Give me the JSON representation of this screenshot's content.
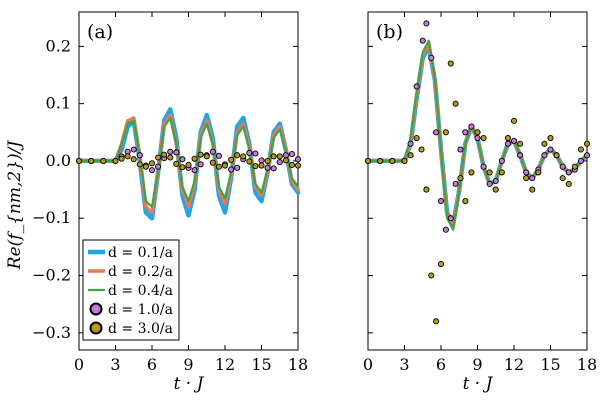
{
  "chart_data": {
    "type": "line",
    "xlabel": "t · J",
    "ylabel": "Re(f_{nm,2})/J",
    "xlim": [
      0,
      18
    ],
    "ylim": [
      -0.33,
      0.26
    ],
    "xticks": [
      0,
      3,
      6,
      9,
      12,
      15,
      18
    ],
    "yticks": [
      -0.3,
      -0.2,
      -0.1,
      0.0,
      0.1,
      0.2
    ],
    "ytick_labels": [
      "−0.3",
      "−0.2",
      "−0.1",
      "0.0",
      "0.1",
      "0.2"
    ],
    "legend_location": "bottom-left",
    "legend": [
      {
        "label": "d = 0.1/a",
        "color": "#1ea5e8",
        "style": "line"
      },
      {
        "label": "d = 0.2/a",
        "color": "#e8795a",
        "style": "line"
      },
      {
        "label": "d = 0.4/a",
        "color": "#3aa647",
        "style": "line"
      },
      {
        "label": "d = 1.0/a",
        "color": "#c878d8",
        "style": "marker"
      },
      {
        "label": "d = 3.0/a",
        "color": "#b89a1a",
        "style": "marker"
      }
    ],
    "panels": [
      {
        "label": "(a)",
        "series": [
          {
            "name": "d = 0.1/a",
            "x": [
              0,
              3,
              3.5,
              4,
              4.5,
              5,
              5.5,
              6,
              6.5,
              7,
              7.5,
              8,
              8.5,
              9,
              9.5,
              10,
              10.5,
              11,
              11.5,
              12,
              12.5,
              13,
              13.5,
              14,
              14.5,
              15,
              15.5,
              16,
              16.5,
              17,
              17.5,
              18
            ],
            "y": [
              0,
              0,
              0.02,
              0.06,
              0.07,
              0.0,
              -0.09,
              -0.1,
              -0.02,
              0.07,
              0.09,
              0.04,
              -0.06,
              -0.095,
              -0.05,
              0.05,
              0.08,
              0.04,
              -0.06,
              -0.09,
              -0.03,
              0.06,
              0.075,
              0.03,
              -0.055,
              -0.07,
              -0.02,
              0.05,
              0.065,
              0.02,
              -0.04,
              -0.055
            ]
          },
          {
            "name": "d = 0.2/a",
            "x": [
              0,
              3,
              3.5,
              4,
              4.5,
              5,
              5.5,
              6,
              6.5,
              7,
              7.5,
              8,
              8.5,
              9,
              9.5,
              10,
              10.5,
              11,
              11.5,
              12,
              12.5,
              13,
              13.5,
              14,
              14.5,
              15,
              15.5,
              16,
              16.5,
              17,
              17.5,
              18
            ],
            "y": [
              0,
              0,
              0.03,
              0.07,
              0.075,
              0.01,
              -0.08,
              -0.09,
              -0.02,
              0.065,
              0.08,
              0.03,
              -0.05,
              -0.08,
              -0.04,
              0.045,
              0.07,
              0.03,
              -0.05,
              -0.075,
              -0.025,
              0.05,
              0.065,
              0.025,
              -0.045,
              -0.06,
              -0.02,
              0.045,
              0.06,
              0.02,
              -0.035,
              -0.05
            ]
          },
          {
            "name": "d = 0.4/a",
            "x": [
              0,
              3,
              3.5,
              4,
              4.5,
              5,
              5.5,
              6,
              6.5,
              7,
              7.5,
              8,
              8.5,
              9,
              9.5,
              10,
              10.5,
              11,
              11.5,
              12,
              12.5,
              13,
              13.5,
              14,
              14.5,
              15,
              15.5,
              16,
              16.5,
              17,
              17.5,
              18
            ],
            "y": [
              0,
              0,
              0.03,
              0.065,
              0.07,
              0.01,
              -0.07,
              -0.08,
              -0.02,
              0.06,
              0.075,
              0.03,
              -0.045,
              -0.07,
              -0.035,
              0.04,
              0.065,
              0.03,
              -0.045,
              -0.065,
              -0.02,
              0.045,
              0.06,
              0.02,
              -0.04,
              -0.055,
              -0.015,
              0.04,
              0.055,
              0.015,
              -0.03,
              -0.045
            ]
          },
          {
            "name": "d = 1.0/a",
            "x": [
              0,
              1,
              2,
              3,
              3.5,
              4,
              4.5,
              5,
              5.5,
              6,
              6.5,
              7,
              7.5,
              8,
              8.5,
              9,
              9.5,
              10,
              10.5,
              11,
              11.5,
              12,
              12.5,
              13,
              13.5,
              14,
              14.5,
              15,
              15.5,
              16,
              16.5,
              17,
              17.5,
              18
            ],
            "y": [
              0,
              0,
              0,
              0,
              0.008,
              0.016,
              0.02,
              0.01,
              -0.008,
              -0.016,
              -0.01,
              0.005,
              0.016,
              0.015,
              0.003,
              -0.012,
              -0.016,
              -0.006,
              0.01,
              0.016,
              0.009,
              -0.006,
              -0.015,
              -0.012,
              0.003,
              0.014,
              0.013,
              0.001,
              -0.012,
              -0.013,
              -0.002,
              0.01,
              0.012,
              0.003
            ]
          },
          {
            "name": "d = 3.0/a",
            "x": [
              0,
              1,
              2,
              3,
              3.5,
              4,
              4.5,
              5,
              5.5,
              6,
              6.5,
              7,
              7.5,
              8,
              8.5,
              9,
              9.5,
              10,
              10.5,
              11,
              11.5,
              12,
              12.5,
              13,
              13.5,
              14,
              14.5,
              15,
              15.5,
              16,
              16.5,
              17,
              17.5,
              18
            ],
            "y": [
              0,
              0,
              0,
              0,
              0.004,
              0.008,
              0.003,
              -0.006,
              -0.01,
              -0.004,
              0.006,
              0.011,
              0.006,
              -0.005,
              -0.011,
              -0.007,
              0.004,
              0.011,
              0.008,
              -0.003,
              -0.01,
              -0.008,
              0.002,
              0.01,
              0.008,
              -0.001,
              -0.009,
              -0.008,
              0.0,
              0.008,
              0.008,
              0.001,
              -0.007,
              -0.008
            ]
          }
        ]
      },
      {
        "label": "(b)",
        "series": [
          {
            "name": "d = 0.1/a",
            "x": [
              0,
              3,
              3.5,
              4,
              4.5,
              5,
              5.5,
              6,
              6.5,
              7,
              7.5,
              8,
              8.5,
              9,
              9.5,
              10,
              10.5,
              11,
              11.5,
              12,
              12.5,
              13,
              13.5,
              14,
              14.5,
              15,
              15.5,
              16,
              16.5,
              17,
              17.5,
              18
            ],
            "y": [
              0,
              0,
              0.03,
              0.11,
              0.18,
              0.2,
              0.14,
              0.02,
              -0.09,
              -0.11,
              -0.05,
              0.03,
              0.06,
              0.04,
              -0.01,
              -0.04,
              -0.035,
              0.0,
              0.03,
              0.035,
              0.01,
              -0.02,
              -0.03,
              -0.015,
              0.01,
              0.02,
              0.01,
              -0.01,
              -0.02,
              -0.015,
              0.0,
              0.01
            ]
          },
          {
            "name": "d = 0.2/a",
            "x": [
              0,
              3,
              3.5,
              4,
              4.5,
              5,
              5.5,
              6,
              6.5,
              7,
              7.5,
              8,
              8.5,
              9,
              9.5,
              10,
              10.5,
              11,
              11.5,
              12,
              12.5,
              13,
              13.5,
              14,
              14.5,
              15,
              15.5,
              16,
              16.5,
              17,
              17.5,
              18
            ],
            "y": [
              0,
              0,
              0.035,
              0.115,
              0.185,
              0.205,
              0.14,
              0.02,
              -0.095,
              -0.115,
              -0.05,
              0.03,
              0.062,
              0.04,
              -0.01,
              -0.04,
              -0.035,
              0.0,
              0.03,
              0.035,
              0.01,
              -0.02,
              -0.03,
              -0.015,
              0.01,
              0.02,
              0.01,
              -0.01,
              -0.02,
              -0.015,
              0.0,
              0.01
            ]
          },
          {
            "name": "d = 0.4/a",
            "x": [
              0,
              3,
              3.5,
              4,
              4.5,
              5,
              5.5,
              6,
              6.5,
              7,
              7.5,
              8,
              8.5,
              9,
              9.5,
              10,
              10.5,
              11,
              11.5,
              12,
              12.5,
              13,
              13.5,
              14,
              14.5,
              15,
              15.5,
              16,
              16.5,
              17,
              17.5,
              18
            ],
            "y": [
              0,
              0,
              0.04,
              0.12,
              0.19,
              0.21,
              0.145,
              0.02,
              -0.1,
              -0.12,
              -0.05,
              0.03,
              0.063,
              0.04,
              -0.01,
              -0.04,
              -0.035,
              0.0,
              0.03,
              0.035,
              0.01,
              -0.02,
              -0.03,
              -0.015,
              0.01,
              0.02,
              0.01,
              -0.01,
              -0.02,
              -0.015,
              0.0,
              0.01
            ]
          },
          {
            "name": "d = 1.0/a",
            "x": [
              0,
              1,
              2,
              3,
              3.5,
              4,
              4.5,
              4.8,
              5.2,
              5.6,
              6,
              6.4,
              6.8,
              7.2,
              7.6,
              8,
              8.5,
              9,
              9.5,
              10,
              10.5,
              11,
              11.5,
              12,
              12.5,
              13,
              13.5,
              14,
              14.5,
              15,
              15.5,
              16,
              16.5,
              17,
              17.5,
              18
            ],
            "y": [
              0,
              0,
              0,
              0,
              0.03,
              0.13,
              0.21,
              0.24,
              0.18,
              0.05,
              -0.07,
              -0.12,
              -0.1,
              -0.04,
              0.02,
              0.05,
              0.06,
              0.04,
              -0.01,
              -0.04,
              -0.035,
              0.0,
              0.03,
              0.035,
              0.01,
              -0.02,
              -0.03,
              -0.015,
              0.01,
              0.02,
              0.01,
              -0.01,
              -0.02,
              -0.015,
              0.0,
              0.01
            ]
          },
          {
            "name": "d = 3.0/a",
            "x": [
              0,
              1,
              2,
              3,
              3.5,
              4,
              4.4,
              4.8,
              5.2,
              5.6,
              6,
              6.4,
              6.8,
              7.2,
              7.6,
              8,
              8.5,
              9,
              9.5,
              10,
              10.5,
              11,
              11.5,
              12,
              12.5,
              13,
              13.5,
              14,
              14.5,
              15,
              15.5,
              16,
              16.5,
              17,
              17.5,
              18
            ],
            "y": [
              0,
              0,
              0,
              0,
              0.01,
              0.04,
              0.02,
              -0.05,
              -0.2,
              -0.28,
              -0.18,
              0.05,
              0.17,
              0.1,
              -0.03,
              -0.07,
              -0.02,
              0.05,
              0.04,
              -0.02,
              -0.05,
              -0.02,
              0.04,
              0.07,
              0.03,
              -0.03,
              -0.05,
              -0.02,
              0.03,
              0.04,
              0.01,
              -0.03,
              -0.04,
              -0.01,
              0.02,
              0.03
            ]
          }
        ]
      }
    ]
  }
}
